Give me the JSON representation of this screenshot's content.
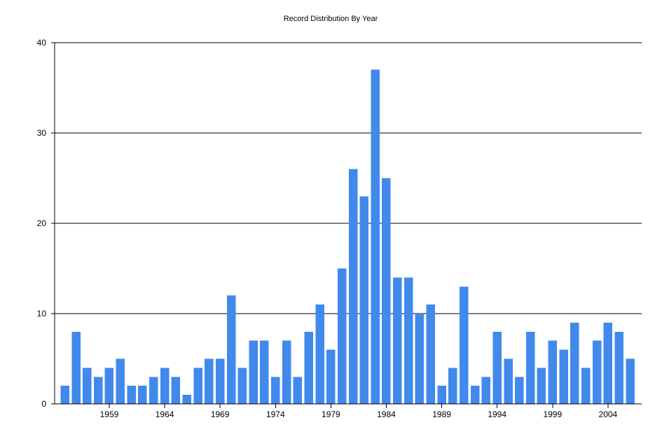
{
  "chart_data": {
    "type": "bar",
    "title": "Record Distribution By Year",
    "xlabel": "",
    "ylabel": "",
    "ylim": [
      0,
      40
    ],
    "yticks": [
      0,
      10,
      20,
      30,
      40
    ],
    "xticks": [
      1959,
      1964,
      1969,
      1974,
      1979,
      1984,
      1989,
      1994,
      1999,
      2004
    ],
    "grid": "horizontal",
    "bar_color": "#4189EB",
    "categories": [
      1955,
      1956,
      1957,
      1958,
      1959,
      1960,
      1961,
      1962,
      1963,
      1964,
      1965,
      1966,
      1967,
      1968,
      1969,
      1970,
      1971,
      1972,
      1973,
      1974,
      1975,
      1976,
      1977,
      1978,
      1979,
      1980,
      1981,
      1982,
      1983,
      1984,
      1985,
      1986,
      1987,
      1988,
      1989,
      1990,
      1991,
      1992,
      1993,
      1994,
      1995,
      1996,
      1997,
      1998,
      1999,
      2000,
      2001,
      2002,
      2003,
      2004,
      2005,
      2006
    ],
    "values": [
      2,
      8,
      4,
      3,
      4,
      5,
      2,
      2,
      3,
      4,
      3,
      1,
      4,
      5,
      5,
      12,
      4,
      7,
      7,
      3,
      7,
      3,
      8,
      11,
      6,
      15,
      26,
      23,
      37,
      25,
      14,
      14,
      10,
      11,
      2,
      4,
      13,
      2,
      3,
      8,
      5,
      3,
      8,
      4,
      7,
      6,
      9,
      4,
      7,
      9,
      8,
      5
    ]
  }
}
